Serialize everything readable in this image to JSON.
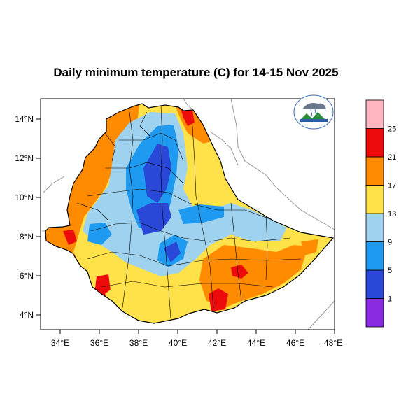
{
  "title": "Daily minimum temperature (C) for 14-15 Nov 2025",
  "map": {
    "x_ticks": [
      "34°E",
      "36°E",
      "38°E",
      "40°E",
      "42°E",
      "44°E",
      "46°E",
      "48°E"
    ],
    "y_ticks": [
      "14°N",
      "12°N",
      "10°N",
      "8°N",
      "6°N",
      "4°N"
    ],
    "lon_range": [
      33,
      48
    ],
    "lat_range": [
      3.2,
      15
    ]
  },
  "colorbar": {
    "levels": [
      "1",
      "5",
      "9",
      "13",
      "17",
      "21",
      "25"
    ],
    "colors": [
      "#8a2be2",
      "#2a48d8",
      "#1e9bf0",
      "#9fd2ee",
      "#ffe14a",
      "#ff8c00",
      "#ec0a0a",
      "#ffb6c1"
    ]
  },
  "logo_icon": "ethiopian-meteorology-institute-logo"
}
